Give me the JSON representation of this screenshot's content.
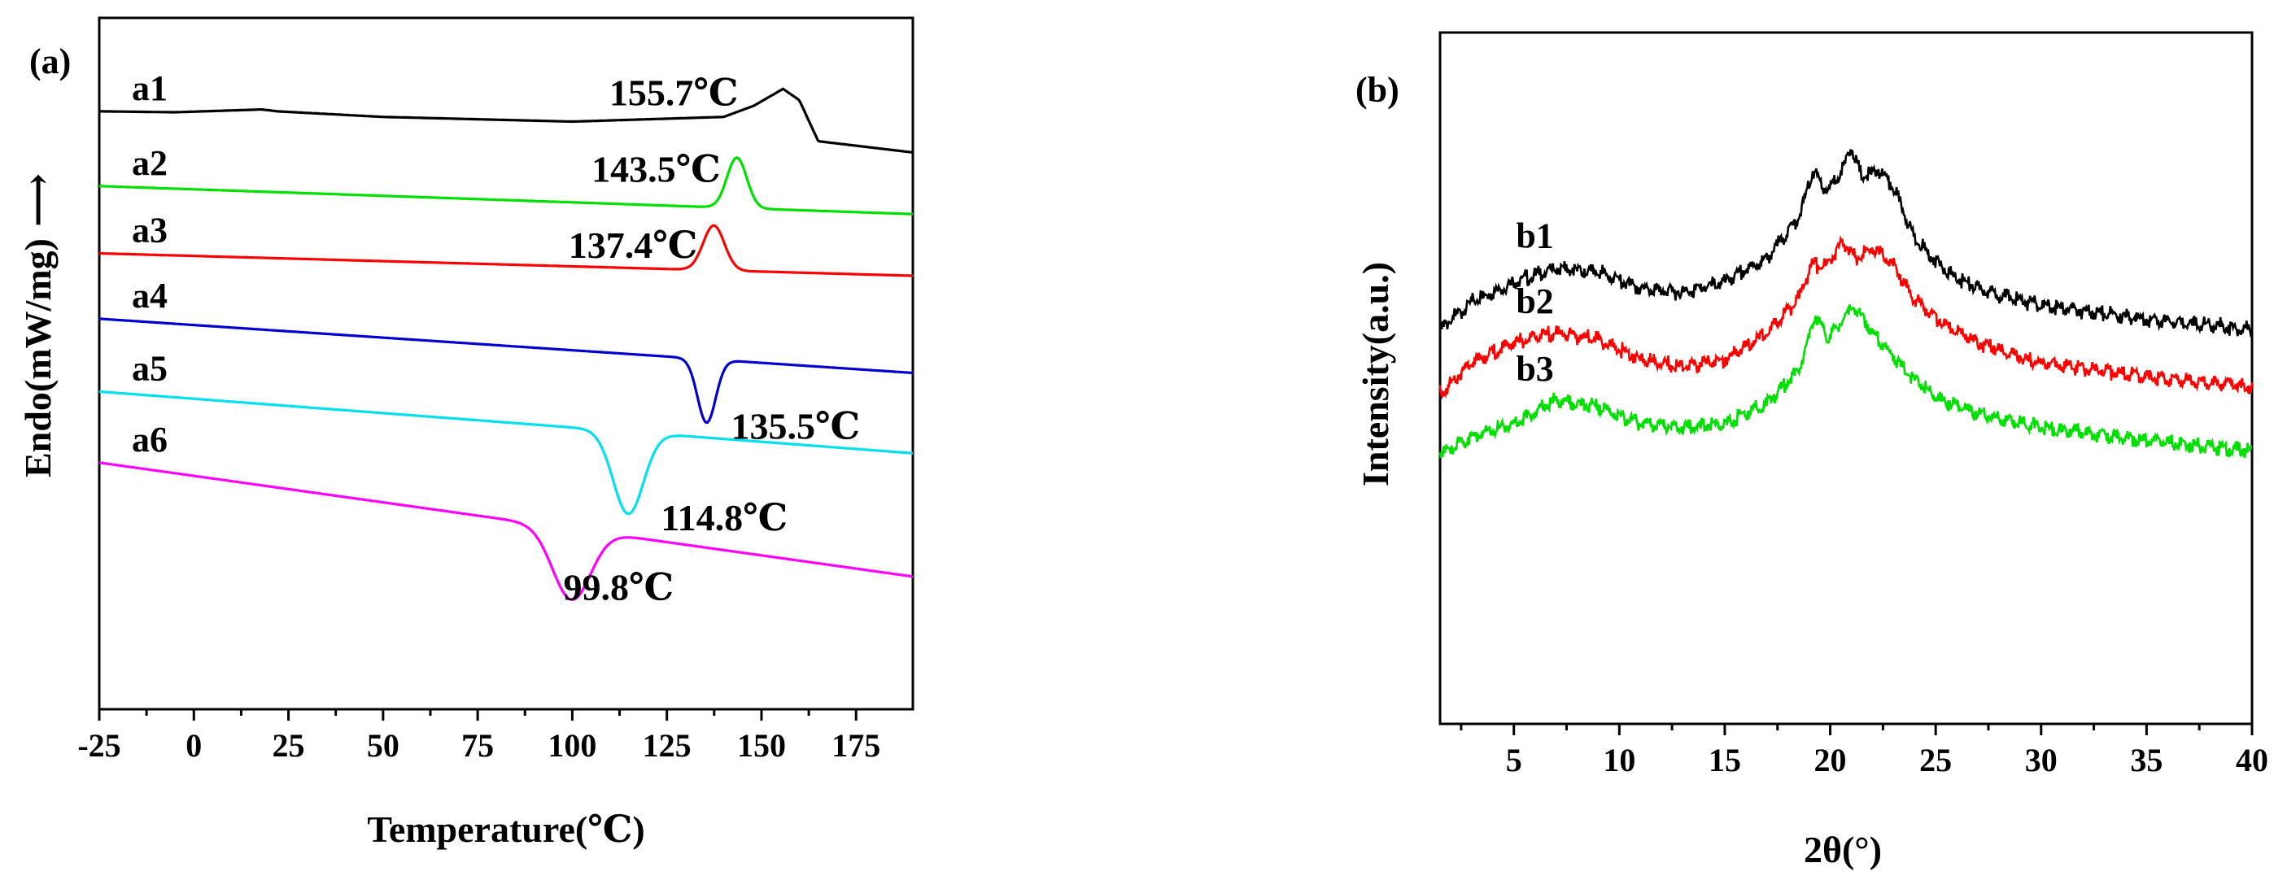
{
  "chart_data": [
    {
      "panel": "(a)",
      "type": "line",
      "xlabel": "Temperature(℃)",
      "ylabel": "Endo(mW/mg)",
      "ylabel_arrow": "⟶",
      "xlim": [
        -25,
        190
      ],
      "xticks": [
        -25,
        0,
        25,
        50,
        75,
        100,
        125,
        150,
        175
      ],
      "grid": false,
      "series": [
        {
          "name": "a1",
          "color": "#000000",
          "start": 0.0,
          "end": -2.2,
          "peak_x": 155.7,
          "peak_depth": 1.85,
          "peak_width": 5.5,
          "annotation": "155.7℃",
          "points": [
            [
              -25,
              0
            ],
            [
              -5,
              -0.05
            ],
            [
              18,
              0.1
            ],
            [
              22,
              0
            ],
            [
              50,
              -0.3
            ],
            [
              100,
              -0.55
            ],
            [
              140,
              -0.3
            ],
            [
              148,
              0.3
            ],
            [
              155.7,
              1.2
            ],
            [
              160,
              0.6
            ],
            [
              165,
              -1.6
            ],
            [
              190,
              -2.2
            ]
          ]
        },
        {
          "name": "a2",
          "color": "#00e000",
          "start": -4.0,
          "end": -5.5,
          "peak_x": 143.5,
          "peak_depth": 2.7,
          "peak_width": 2.6,
          "annotation": "143.5℃"
        },
        {
          "name": "a3",
          "color": "#ff0000",
          "start": -7.6,
          "end": -8.8,
          "peak_x": 137.4,
          "peak_depth": 2.4,
          "peak_width": 2.8,
          "annotation": "137.4℃"
        },
        {
          "name": "a4",
          "color": "#0000d0",
          "start": -11.1,
          "end": -14.0,
          "peak_x": 135.5,
          "peak_depth": -3.4,
          "peak_width": 2.4,
          "annotation": "135.5℃"
        },
        {
          "name": "a5",
          "color": "#00e0f0",
          "start": -15.0,
          "end": -18.3,
          "peak_x": 114.8,
          "peak_depth": -4.4,
          "peak_width": 4.0,
          "annotation": "114.8℃"
        },
        {
          "name": "a6",
          "color": "#ff00ff",
          "start": -18.8,
          "end": -24.9,
          "peak_x": 99.8,
          "peak_depth": -3.8,
          "peak_width": 5.0,
          "annotation": "99.8℃"
        }
      ]
    },
    {
      "panel": "(b)",
      "type": "line",
      "xlabel": "2θ(°)",
      "ylabel": "Intensity(a.u.)",
      "xlim": [
        1.5,
        40
      ],
      "xticks": [
        5,
        10,
        15,
        20,
        25,
        30,
        35,
        40
      ],
      "grid": false,
      "series": [
        {
          "name": "b1",
          "color": "#000000",
          "points": [
            [
              1.5,
              4.2
            ],
            [
              3,
              5.0
            ],
            [
              5,
              5.6
            ],
            [
              7,
              6.0
            ],
            [
              9,
              5.9
            ],
            [
              11,
              5.4
            ],
            [
              13,
              5.3
            ],
            [
              15,
              5.6
            ],
            [
              17,
              6.3
            ],
            [
              18.5,
              7.5
            ],
            [
              19.2,
              8.9
            ],
            [
              19.8,
              8.3
            ],
            [
              20.5,
              8.8
            ],
            [
              21,
              9.6
            ],
            [
              21.5,
              8.7
            ],
            [
              22.3,
              8.9
            ],
            [
              23,
              8.4
            ],
            [
              24,
              6.9
            ],
            [
              25.5,
              5.9
            ],
            [
              27,
              5.4
            ],
            [
              30,
              4.9
            ],
            [
              35,
              4.5
            ],
            [
              40,
              4.2
            ]
          ]
        },
        {
          "name": "b2",
          "color": "#ff0000",
          "points": [
            [
              1.5,
              2.3
            ],
            [
              3,
              3.2
            ],
            [
              5,
              3.8
            ],
            [
              7,
              4.1
            ],
            [
              9,
              3.9
            ],
            [
              11,
              3.3
            ],
            [
              13,
              3.1
            ],
            [
              15,
              3.3
            ],
            [
              17,
              4.1
            ],
            [
              18.5,
              5.1
            ],
            [
              19.1,
              6.1
            ],
            [
              19.8,
              6.1
            ],
            [
              20.6,
              6.8
            ],
            [
              21.2,
              6.3
            ],
            [
              22.1,
              6.6
            ],
            [
              23,
              6.1
            ],
            [
              24,
              5.1
            ],
            [
              25.5,
              4.3
            ],
            [
              27,
              3.8
            ],
            [
              30,
              3.2
            ],
            [
              35,
              2.8
            ],
            [
              40,
              2.5
            ]
          ]
        },
        {
          "name": "b3",
          "color": "#00e000",
          "points": [
            [
              1.5,
              0.5
            ],
            [
              3,
              1.0
            ],
            [
              5,
              1.4
            ],
            [
              7,
              2.1
            ],
            [
              9,
              1.9
            ],
            [
              11,
              1.4
            ],
            [
              13,
              1.3
            ],
            [
              15,
              1.4
            ],
            [
              17,
              2.0
            ],
            [
              18.5,
              3.0
            ],
            [
              19.3,
              4.6
            ],
            [
              19.9,
              3.9
            ],
            [
              20.5,
              4.4
            ],
            [
              21.1,
              4.9
            ],
            [
              21.7,
              4.4
            ],
            [
              22.4,
              3.8
            ],
            [
              23.5,
              3.0
            ],
            [
              25,
              2.2
            ],
            [
              27,
              1.7
            ],
            [
              30,
              1.3
            ],
            [
              35,
              0.9
            ],
            [
              40,
              0.6
            ]
          ]
        }
      ]
    }
  ]
}
